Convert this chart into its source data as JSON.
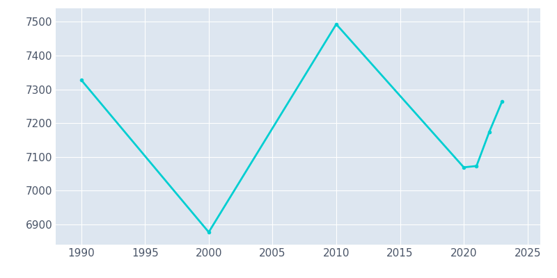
{
  "years": [
    1990,
    2000,
    2010,
    2020,
    2021,
    2022,
    2023
  ],
  "population": [
    7328,
    6877,
    7493,
    7069,
    7073,
    7174,
    7264
  ],
  "line_color": "#00CED1",
  "plot_bg_color": "#dde6f0",
  "figure_bg_color": "#ffffff",
  "xlim": [
    1988,
    2026
  ],
  "ylim": [
    6840,
    7540
  ],
  "yticks": [
    6900,
    7000,
    7100,
    7200,
    7300,
    7400,
    7500
  ],
  "xticks": [
    1990,
    1995,
    2000,
    2005,
    2010,
    2015,
    2020,
    2025
  ],
  "grid_color": "#ffffff",
  "tick_color": "#4a5568",
  "linewidth": 2.0,
  "marker": "o",
  "markersize": 3
}
